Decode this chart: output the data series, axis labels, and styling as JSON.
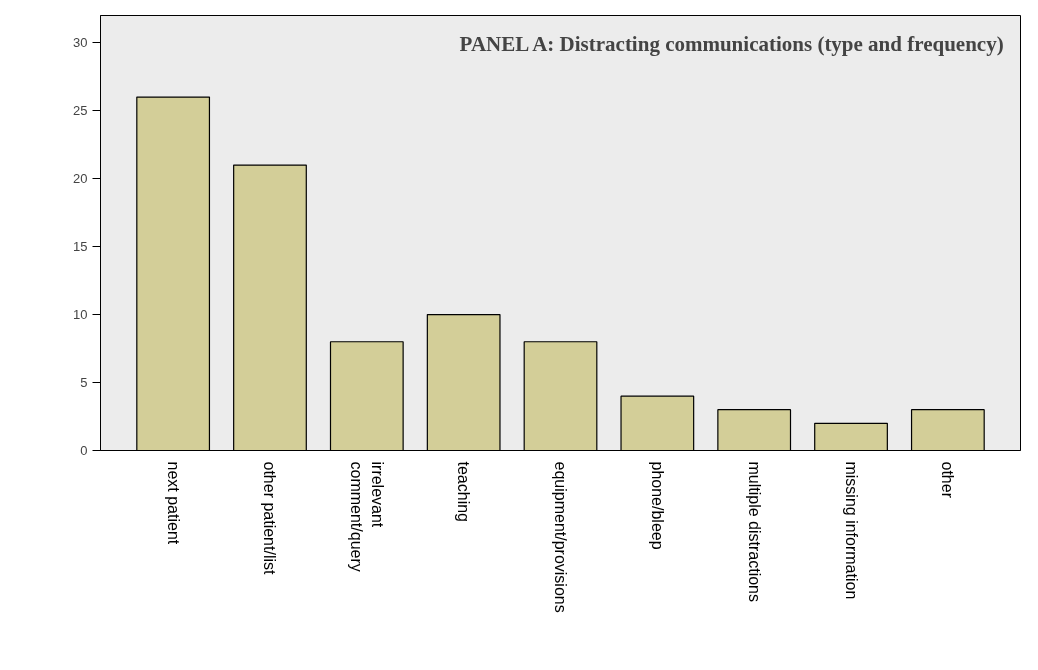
{
  "chart_data": {
    "type": "bar",
    "title": "PANEL A: Distracting communications (type and frequency)",
    "categories": [
      "next patient",
      "other patient/list",
      "irrelevant\ncomment/query",
      "teaching",
      "equipment/provisions",
      "phone/bleep",
      "multiple distractions",
      "missing information",
      "other"
    ],
    "values": [
      26,
      21,
      8,
      10,
      8,
      4,
      3,
      2,
      3
    ],
    "color": "#d3ce98",
    "ylim": [
      0,
      32
    ],
    "yticks": [
      0,
      5,
      10,
      15,
      20,
      25,
      30
    ],
    "grid": false
  }
}
